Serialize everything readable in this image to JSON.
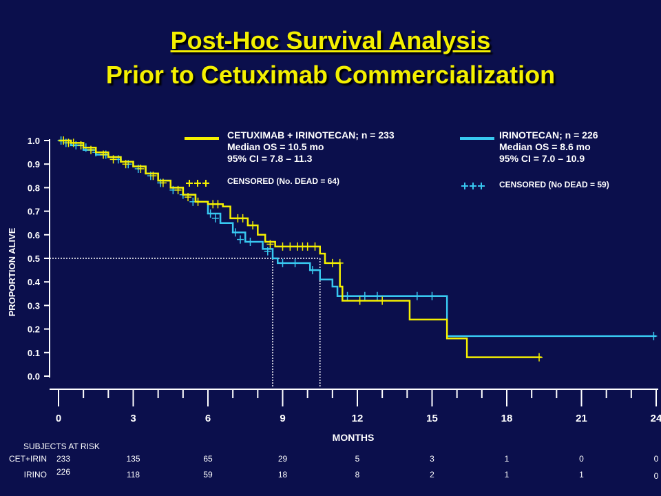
{
  "title": "Post-Hoc Survival Analysis",
  "subtitle": "Prior to Cetuximab Commercialization",
  "chart_data": {
    "type": "line",
    "ylabel": "PROPORTION ALIVE",
    "xlabel": "MONTHS",
    "xlim": [
      0,
      24
    ],
    "ylim": [
      0,
      1.0
    ],
    "xticks": [
      "0",
      "3",
      "6",
      "9",
      "12",
      "15",
      "18",
      "21",
      "24"
    ],
    "yticks": [
      "0.0",
      "0.1",
      "0.2",
      "0.3",
      "0.4",
      "0.5",
      "0.6",
      "0.7",
      "0.8",
      "0.9",
      "1.0"
    ],
    "median_line": 0.5,
    "medians": [
      10.5,
      8.6
    ],
    "colors": {
      "cet": "#f5f000",
      "irino": "#38c8f0",
      "axis": "#ffffff"
    },
    "series": [
      {
        "name": "CETUXIMAB + IRINOTECAN; n = 233",
        "median_text": "Median OS = 10.5 mo",
        "ci_text": "95% CI = 7.8 – 11.3",
        "censored_text": "CENSORED (No. DEAD = 64)",
        "color": "#f5f000",
        "steps": [
          [
            0,
            1.0
          ],
          [
            0.5,
            0.99
          ],
          [
            1,
            0.97
          ],
          [
            1.5,
            0.95
          ],
          [
            2,
            0.93
          ],
          [
            2.5,
            0.91
          ],
          [
            3,
            0.89
          ],
          [
            3.5,
            0.86
          ],
          [
            4,
            0.83
          ],
          [
            4.5,
            0.8
          ],
          [
            5,
            0.77
          ],
          [
            5.5,
            0.74
          ],
          [
            6,
            0.73
          ],
          [
            6.6,
            0.72
          ],
          [
            6.9,
            0.67
          ],
          [
            7.6,
            0.64
          ],
          [
            8,
            0.6
          ],
          [
            8.3,
            0.57
          ],
          [
            8.7,
            0.55
          ],
          [
            10.5,
            0.52
          ],
          [
            10.7,
            0.48
          ],
          [
            11.3,
            0.38
          ],
          [
            11.4,
            0.32
          ],
          [
            14.1,
            0.24
          ],
          [
            15.6,
            0.16
          ],
          [
            16.4,
            0.08
          ],
          [
            19.4,
            0.08
          ]
        ],
        "censors": [
          [
            0.2,
            1.0
          ],
          [
            0.4,
            0.99
          ],
          [
            0.6,
            0.99
          ],
          [
            0.9,
            0.98
          ],
          [
            1.3,
            0.96
          ],
          [
            1.8,
            0.94
          ],
          [
            2.2,
            0.92
          ],
          [
            2.7,
            0.9
          ],
          [
            3.3,
            0.88
          ],
          [
            3.8,
            0.85
          ],
          [
            4.2,
            0.82
          ],
          [
            4.8,
            0.79
          ],
          [
            5.2,
            0.76
          ],
          [
            5.6,
            0.74
          ],
          [
            6.2,
            0.73
          ],
          [
            6.4,
            0.73
          ],
          [
            7.2,
            0.67
          ],
          [
            7.4,
            0.67
          ],
          [
            7.8,
            0.64
          ],
          [
            8.5,
            0.56
          ],
          [
            9.0,
            0.55
          ],
          [
            9.3,
            0.55
          ],
          [
            9.6,
            0.55
          ],
          [
            9.8,
            0.55
          ],
          [
            10.0,
            0.55
          ],
          [
            10.3,
            0.55
          ],
          [
            11.0,
            0.48
          ],
          [
            11.3,
            0.48
          ],
          [
            12.1,
            0.32
          ],
          [
            13.0,
            0.32
          ],
          [
            19.3,
            0.08
          ]
        ]
      },
      {
        "name": "IRINOTECAN; n = 226",
        "median_text": "Median OS = 8.6 mo",
        "ci_text": "95% CI = 7.0 – 10.9",
        "censored_text": "CENSORED (No DEAD = 59)",
        "color": "#38c8f0",
        "steps": [
          [
            0,
            1.0
          ],
          [
            0.5,
            0.98
          ],
          [
            1,
            0.96
          ],
          [
            1.5,
            0.94
          ],
          [
            2,
            0.93
          ],
          [
            2.5,
            0.91
          ],
          [
            3,
            0.89
          ],
          [
            3.5,
            0.86
          ],
          [
            4,
            0.83
          ],
          [
            4.5,
            0.8
          ],
          [
            5,
            0.77
          ],
          [
            5.5,
            0.74
          ],
          [
            6,
            0.69
          ],
          [
            6.5,
            0.65
          ],
          [
            7,
            0.61
          ],
          [
            7.5,
            0.57
          ],
          [
            8.2,
            0.54
          ],
          [
            8.6,
            0.5
          ],
          [
            8.8,
            0.48
          ],
          [
            10.1,
            0.45
          ],
          [
            10.5,
            0.41
          ],
          [
            11.0,
            0.38
          ],
          [
            11.2,
            0.34
          ],
          [
            15.6,
            0.17
          ],
          [
            24,
            0.17
          ]
        ],
        "censors": [
          [
            0.1,
            1.0
          ],
          [
            0.3,
            0.99
          ],
          [
            0.7,
            0.98
          ],
          [
            1.1,
            0.97
          ],
          [
            1.5,
            0.95
          ],
          [
            1.9,
            0.94
          ],
          [
            2.4,
            0.92
          ],
          [
            2.8,
            0.9
          ],
          [
            3.2,
            0.88
          ],
          [
            3.7,
            0.85
          ],
          [
            4.1,
            0.82
          ],
          [
            4.6,
            0.79
          ],
          [
            5.0,
            0.77
          ],
          [
            5.4,
            0.74
          ],
          [
            6.1,
            0.69
          ],
          [
            6.3,
            0.67
          ],
          [
            7.1,
            0.61
          ],
          [
            7.3,
            0.58
          ],
          [
            7.7,
            0.57
          ],
          [
            8.4,
            0.53
          ],
          [
            9.0,
            0.48
          ],
          [
            9.5,
            0.48
          ],
          [
            10.2,
            0.45
          ],
          [
            11.6,
            0.34
          ],
          [
            12.3,
            0.34
          ],
          [
            12.8,
            0.34
          ],
          [
            14.4,
            0.34
          ],
          [
            15.0,
            0.34
          ],
          [
            23.9,
            0.17
          ]
        ]
      }
    ]
  },
  "risk_table": {
    "header": "SUBJECTS AT RISK",
    "rows": [
      {
        "label": "CET+IRIN",
        "values": [
          "233",
          "135",
          "65",
          "29",
          "5",
          "3",
          "1",
          "0",
          "0"
        ]
      },
      {
        "label": "IRINO",
        "values": [
          "226",
          "118",
          "59",
          "18",
          "8",
          "2",
          "1",
          "1",
          "0"
        ]
      }
    ]
  }
}
